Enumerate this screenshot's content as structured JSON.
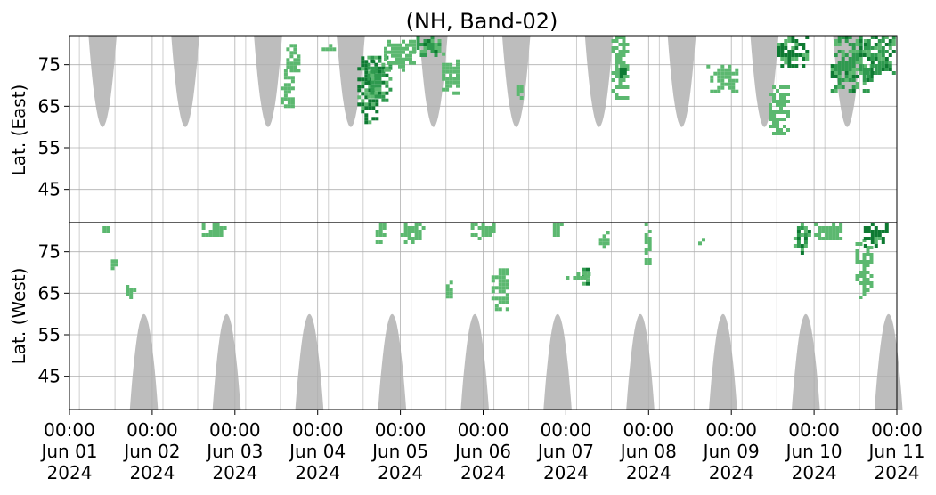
{
  "chart_data": {
    "type": "heatmap",
    "title": "(NH, Band-02)",
    "x_range": [
      "2024-06-01 00:00",
      "2024-06-11 00:00"
    ],
    "xticks": [
      {
        "time": "00:00",
        "day": "Jun 01",
        "year": "2024"
      },
      {
        "time": "00:00",
        "day": "Jun 02",
        "year": "2024"
      },
      {
        "time": "00:00",
        "day": "Jun 03",
        "year": "2024"
      },
      {
        "time": "00:00",
        "day": "Jun 04",
        "year": "2024"
      },
      {
        "time": "00:00",
        "day": "Jun 05",
        "year": "2024"
      },
      {
        "time": "00:00",
        "day": "Jun 06",
        "year": "2024"
      },
      {
        "time": "00:00",
        "day": "Jun 07",
        "year": "2024"
      },
      {
        "time": "00:00",
        "day": "Jun 08",
        "year": "2024"
      },
      {
        "time": "00:00",
        "day": "Jun 09",
        "year": "2024"
      },
      {
        "time": "00:00",
        "day": "Jun 10",
        "year": "2024"
      },
      {
        "time": "00:00",
        "day": "Jun 11",
        "year": "2024"
      }
    ],
    "panels": [
      {
        "name": "east",
        "ylabel": "Lat. (East)",
        "yticks": [
          "45",
          "55",
          "65",
          "75"
        ],
        "ylim": [
          37,
          82
        ],
        "grid": true
      },
      {
        "name": "west",
        "ylabel": "Lat. (West)",
        "yticks": [
          "75",
          "65",
          "55",
          "45"
        ],
        "ylim": [
          82,
          37
        ],
        "grid": true
      }
    ],
    "no_data_mask": {
      "color": "#bdbdbd",
      "east": [
        {
          "center_day": 0.4,
          "half_width_days": 0.17,
          "top_lat": 60
        },
        {
          "center_day": 1.4,
          "half_width_days": 0.17,
          "top_lat": 60
        },
        {
          "center_day": 2.4,
          "half_width_days": 0.17,
          "top_lat": 60
        },
        {
          "center_day": 3.4,
          "half_width_days": 0.17,
          "top_lat": 60
        },
        {
          "center_day": 4.4,
          "half_width_days": 0.17,
          "top_lat": 60
        },
        {
          "center_day": 5.4,
          "half_width_days": 0.17,
          "top_lat": 60
        },
        {
          "center_day": 6.4,
          "half_width_days": 0.17,
          "top_lat": 60
        },
        {
          "center_day": 7.4,
          "half_width_days": 0.17,
          "top_lat": 60
        },
        {
          "center_day": 8.4,
          "half_width_days": 0.17,
          "top_lat": 60
        },
        {
          "center_day": 9.4,
          "half_width_days": 0.17,
          "top_lat": 60
        }
      ],
      "west": [
        {
          "center_day": 0.9,
          "half_width_days": 0.17,
          "top_lat": 60
        },
        {
          "center_day": 1.9,
          "half_width_days": 0.17,
          "top_lat": 60
        },
        {
          "center_day": 2.9,
          "half_width_days": 0.17,
          "top_lat": 60
        },
        {
          "center_day": 3.9,
          "half_width_days": 0.17,
          "top_lat": 60
        },
        {
          "center_day": 4.9,
          "half_width_days": 0.17,
          "top_lat": 60
        },
        {
          "center_day": 5.9,
          "half_width_days": 0.17,
          "top_lat": 60
        },
        {
          "center_day": 6.9,
          "half_width_days": 0.17,
          "top_lat": 60
        },
        {
          "center_day": 7.9,
          "half_width_days": 0.17,
          "top_lat": 60
        },
        {
          "center_day": 8.9,
          "half_width_days": 0.17,
          "top_lat": 60
        },
        {
          "center_day": 9.9,
          "half_width_days": 0.17,
          "top_lat": 60
        }
      ],
      "gap_lines_days": [
        0.12,
        0.55,
        1.13,
        1.55,
        2.13,
        2.55,
        3.13,
        3.55,
        4.13,
        4.55,
        5.13,
        5.55,
        6.13,
        6.55,
        7.13,
        7.55,
        8.13,
        8.55,
        9.13,
        9.55
      ]
    },
    "colors": {
      "light": "#5cb870",
      "medium": "#2f9a4f",
      "dark": "#0e7a32"
    },
    "clusters": [
      {
        "panel": "east",
        "x0": 2.55,
        "x1": 2.72,
        "y0": 64,
        "y1": 74,
        "intensity": "light"
      },
      {
        "panel": "east",
        "x0": 2.62,
        "x1": 2.8,
        "y0": 72,
        "y1": 80,
        "intensity": "light"
      },
      {
        "panel": "east",
        "x0": 3.05,
        "x1": 3.22,
        "y0": 78,
        "y1": 80,
        "intensity": "light"
      },
      {
        "panel": "east",
        "x0": 3.48,
        "x1": 3.75,
        "y0": 61,
        "y1": 77,
        "intensity": "dark"
      },
      {
        "panel": "east",
        "x0": 3.6,
        "x1": 3.9,
        "y0": 66,
        "y1": 78,
        "intensity": "medium"
      },
      {
        "panel": "east",
        "x0": 3.8,
        "x1": 4.2,
        "y0": 73,
        "y1": 81,
        "intensity": "light"
      },
      {
        "panel": "east",
        "x0": 4.15,
        "x1": 4.5,
        "y0": 77,
        "y1": 82,
        "intensity": "medium"
      },
      {
        "panel": "east",
        "x0": 4.5,
        "x1": 4.7,
        "y0": 68,
        "y1": 78,
        "intensity": "light"
      },
      {
        "panel": "east",
        "x0": 5.4,
        "x1": 5.5,
        "y0": 67,
        "y1": 70,
        "intensity": "light"
      },
      {
        "panel": "east",
        "x0": 6.55,
        "x1": 6.75,
        "y0": 67,
        "y1": 82,
        "intensity": "light"
      },
      {
        "panel": "east",
        "x0": 6.65,
        "x1": 6.72,
        "y0": 72,
        "y1": 76,
        "intensity": "dark"
      },
      {
        "panel": "east",
        "x0": 7.7,
        "x1": 8.1,
        "y0": 68,
        "y1": 75,
        "intensity": "light"
      },
      {
        "panel": "east",
        "x0": 8.45,
        "x1": 8.7,
        "y0": 58,
        "y1": 70,
        "intensity": "light"
      },
      {
        "panel": "east",
        "x0": 8.55,
        "x1": 8.95,
        "y0": 74,
        "y1": 82,
        "intensity": "dark"
      },
      {
        "panel": "east",
        "x0": 9.2,
        "x1": 9.7,
        "y0": 68,
        "y1": 82,
        "intensity": "medium"
      },
      {
        "panel": "east",
        "x0": 9.6,
        "x1": 10.0,
        "y0": 72,
        "y1": 82,
        "intensity": "medium"
      },
      {
        "panel": "west",
        "x0": 0.4,
        "x1": 0.5,
        "y0": 79,
        "y1": 82,
        "intensity": "light"
      },
      {
        "panel": "west",
        "x0": 0.5,
        "x1": 0.58,
        "y0": 71,
        "y1": 74,
        "intensity": "light"
      },
      {
        "panel": "west",
        "x0": 0.68,
        "x1": 0.8,
        "y0": 64,
        "y1": 67,
        "intensity": "light"
      },
      {
        "panel": "west",
        "x0": 1.6,
        "x1": 1.9,
        "y0": 79,
        "y1": 82,
        "intensity": "light"
      },
      {
        "panel": "west",
        "x0": 3.7,
        "x1": 3.85,
        "y0": 77,
        "y1": 82,
        "intensity": "light"
      },
      {
        "panel": "west",
        "x0": 4.0,
        "x1": 4.3,
        "y0": 77,
        "y1": 82,
        "intensity": "light"
      },
      {
        "panel": "west",
        "x0": 4.55,
        "x1": 4.65,
        "y0": 64,
        "y1": 68,
        "intensity": "light"
      },
      {
        "panel": "west",
        "x0": 4.85,
        "x1": 5.15,
        "y0": 78,
        "y1": 82,
        "intensity": "light"
      },
      {
        "panel": "west",
        "x0": 5.1,
        "x1": 5.3,
        "y0": 61,
        "y1": 71,
        "intensity": "light"
      },
      {
        "panel": "west",
        "x0": 5.8,
        "x1": 5.98,
        "y0": 79,
        "y1": 82,
        "intensity": "light"
      },
      {
        "panel": "west",
        "x0": 6.2,
        "x1": 6.3,
        "y0": 67,
        "y1": 72,
        "intensity": "medium"
      },
      {
        "panel": "west",
        "x0": 6.0,
        "x1": 6.3,
        "y0": 68,
        "y1": 70,
        "intensity": "light"
      },
      {
        "panel": "west",
        "x0": 6.4,
        "x1": 6.55,
        "y0": 76,
        "y1": 80,
        "intensity": "light"
      },
      {
        "panel": "west",
        "x0": 6.95,
        "x1": 7.05,
        "y0": 72,
        "y1": 82,
        "intensity": "light"
      },
      {
        "panel": "west",
        "x0": 7.6,
        "x1": 7.7,
        "y0": 76,
        "y1": 80,
        "intensity": "light"
      },
      {
        "panel": "west",
        "x0": 8.75,
        "x1": 8.95,
        "y0": 74,
        "y1": 82,
        "intensity": "medium"
      },
      {
        "panel": "west",
        "x0": 9.0,
        "x1": 9.4,
        "y0": 78,
        "y1": 82,
        "intensity": "light"
      },
      {
        "panel": "west",
        "x0": 9.5,
        "x1": 9.7,
        "y0": 64,
        "y1": 79,
        "intensity": "light"
      },
      {
        "panel": "west",
        "x0": 9.6,
        "x1": 9.9,
        "y0": 76,
        "y1": 82,
        "intensity": "dark"
      }
    ]
  }
}
